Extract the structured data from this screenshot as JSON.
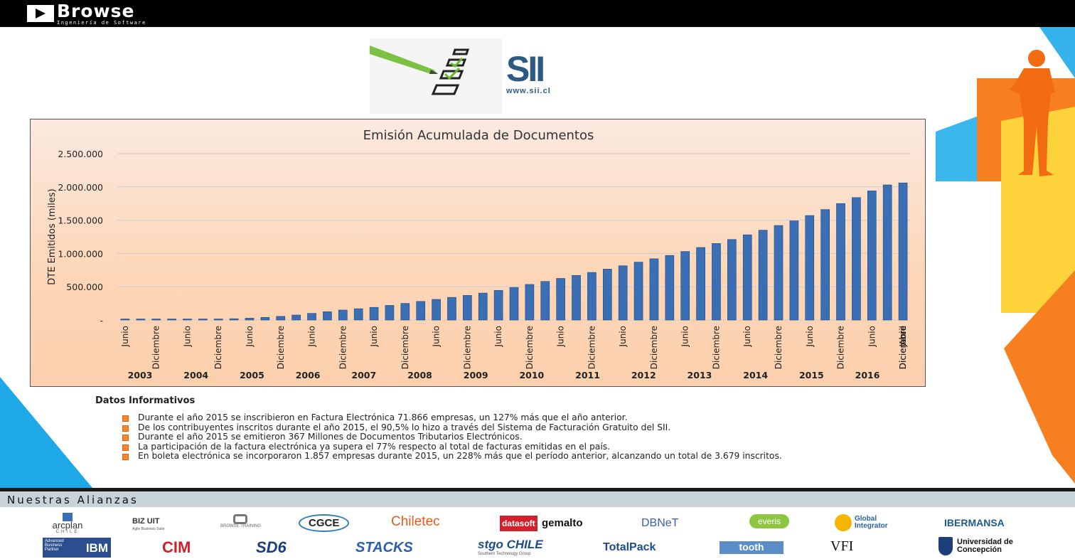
{
  "header": {
    "brand": "Browse",
    "tagline": "Ingeniería de Software"
  },
  "sii_logo": {
    "mark": "SII",
    "url": "www.sii.cl"
  },
  "chart_data": {
    "type": "bar",
    "title": "Emisión Acumulada de Documentos",
    "ylabel": "DTE Emitidos (miles)",
    "xlabel": "",
    "ylim": [
      0,
      2500000
    ],
    "yticks": [
      "-",
      "500.000",
      "1.000.000",
      "1.500.000",
      "2.000.000",
      "2.500.000"
    ],
    "grid": true,
    "color": "#3a6fb5",
    "x_tick_labels": [
      "Junio",
      "Diciembre",
      "Junio",
      "Diciembre",
      "Junio",
      "Diciembre",
      "Junio",
      "Diciembre",
      "Junio",
      "Diciembre",
      "Junio",
      "Diciembre",
      "Junio",
      "Diciembre",
      "Junio",
      "Diciembre",
      "Junio",
      "Diciembre",
      "Junio",
      "Diciembre",
      "Junio",
      "Diciembre",
      "Junio",
      "Diciembre",
      "Junio",
      "Diciembre",
      "Junio",
      "Diciembre",
      "Abril"
    ],
    "years": [
      "2003",
      "2004",
      "2005",
      "2006",
      "2007",
      "2008",
      "2009",
      "2010",
      "2011",
      "2012",
      "2013",
      "2014",
      "2015",
      "2016"
    ],
    "values": [
      1000,
      2000,
      3000,
      5000,
      7000,
      10000,
      15000,
      20000,
      28000,
      40000,
      55000,
      75000,
      100000,
      125000,
      150000,
      170000,
      190000,
      220000,
      250000,
      280000,
      310000,
      340000,
      370000,
      405000,
      445000,
      490000,
      535000,
      580000,
      625000,
      670000,
      715000,
      765000,
      815000,
      870000,
      920000,
      970000,
      1030000,
      1090000,
      1150000,
      1210000,
      1280000,
      1350000,
      1420000,
      1490000,
      1570000,
      1660000,
      1750000,
      1840000,
      1940000,
      2030000,
      2060000
    ]
  },
  "info": {
    "heading": "Datos Informativos",
    "items": [
      "Durante el año 2015 se inscribieron en Factura Electrónica 71.866 empresas, un 127% más que el año anterior.",
      "De los contribuyentes inscritos durante el año 2015, el 90,5% lo hizo a través del Sistema de Facturación Gratuito del SII.",
      "Durante el año 2015 se emitieron 367 Millones de Documentos Tributarios Electrónicos.",
      "La participación de la factura electrónica ya supera el 77% respecto al total de facturas emitidas en el país.",
      "En boleta electrónica se incorporaron 1.857 empresas durante 2015, un 228% más que el período anterior, alcanzando un total de 3.679 inscritos."
    ]
  },
  "alliances": {
    "title": "Nuestras Alianzas",
    "row1": [
      "arcplan",
      "BIZ UIT",
      "BROWSE TRAINING",
      "CGCE",
      "Chiletec",
      "datasoft",
      "gemalto",
      "DBNeT",
      "everis",
      "Global Integrator",
      "IBERMANSA"
    ],
    "row2": [
      "IBM",
      "CIM",
      "SD6",
      "STACKS",
      "stgo CHILE",
      "TotalPack",
      "tooth",
      "VFI",
      "Universidad de Concepción"
    ],
    "captions": {
      "arcplan": "CHILE",
      "bizuit": "Agile Business Suite",
      "stgo": "Southern Technology Group",
      "ibm": "Advanced Business Partner"
    }
  }
}
